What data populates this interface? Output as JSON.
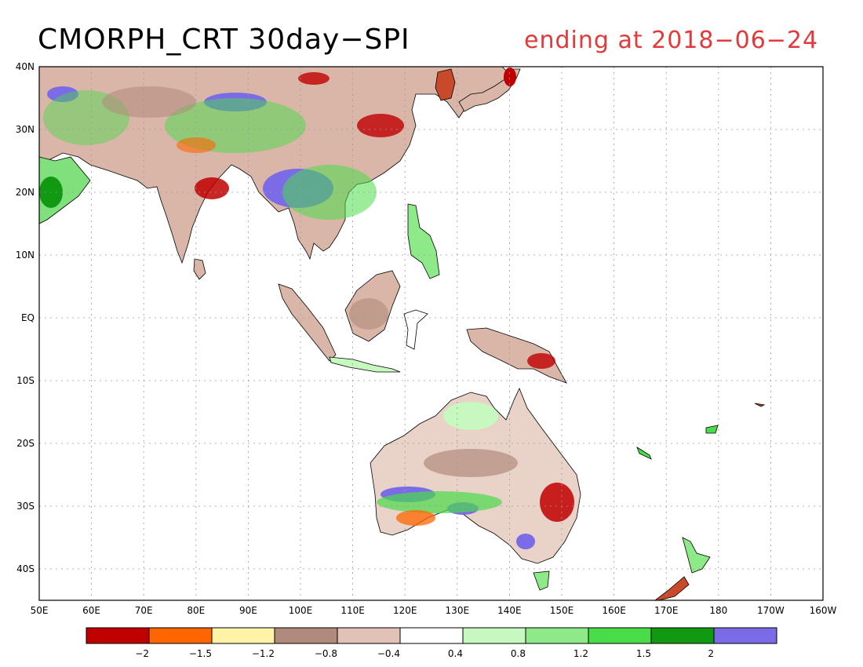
{
  "header": {
    "title": "CMORPH_CRT 30day−SPI",
    "subtitle": "ending at 2018−06−24"
  },
  "map": {
    "lon_range": [
      50,
      200
    ],
    "lat_range": [
      -45,
      40
    ],
    "lat_ticks": [
      {
        "value": 40,
        "label": "40N"
      },
      {
        "value": 30,
        "label": "30N"
      },
      {
        "value": 20,
        "label": "20N"
      },
      {
        "value": 10,
        "label": "10N"
      },
      {
        "value": 0,
        "label": "EQ"
      },
      {
        "value": -10,
        "label": "10S"
      },
      {
        "value": -20,
        "label": "20S"
      },
      {
        "value": -30,
        "label": "30S"
      },
      {
        "value": -40,
        "label": "40S"
      }
    ],
    "lon_ticks": [
      {
        "value": 50,
        "label": "50E"
      },
      {
        "value": 60,
        "label": "60E"
      },
      {
        "value": 70,
        "label": "70E"
      },
      {
        "value": 80,
        "label": "80E"
      },
      {
        "value": 90,
        "label": "90E"
      },
      {
        "value": 100,
        "label": "100E"
      },
      {
        "value": 110,
        "label": "110E"
      },
      {
        "value": 120,
        "label": "120E"
      },
      {
        "value": 130,
        "label": "130E"
      },
      {
        "value": 140,
        "label": "140E"
      },
      {
        "value": 150,
        "label": "150E"
      },
      {
        "value": 160,
        "label": "160E"
      },
      {
        "value": 170,
        "label": "170E"
      },
      {
        "value": 180,
        "label": "180"
      },
      {
        "value": 190,
        "label": "170W"
      },
      {
        "value": 200,
        "label": "160W"
      }
    ]
  },
  "colorbar": {
    "colors": [
      "#c00000",
      "#ff6600",
      "#fff3a8",
      "#b08a7c",
      "#e2c2b6",
      "#ffffff",
      "#c6f8c0",
      "#8eea88",
      "#48dc48",
      "#119911",
      "#7b6be6"
    ],
    "tick_labels": [
      "−2",
      "−1.5",
      "−1.2",
      "−0.8",
      "−0.4",
      "0.4",
      "0.8",
      "1.2",
      "1.5",
      "2"
    ]
  }
}
